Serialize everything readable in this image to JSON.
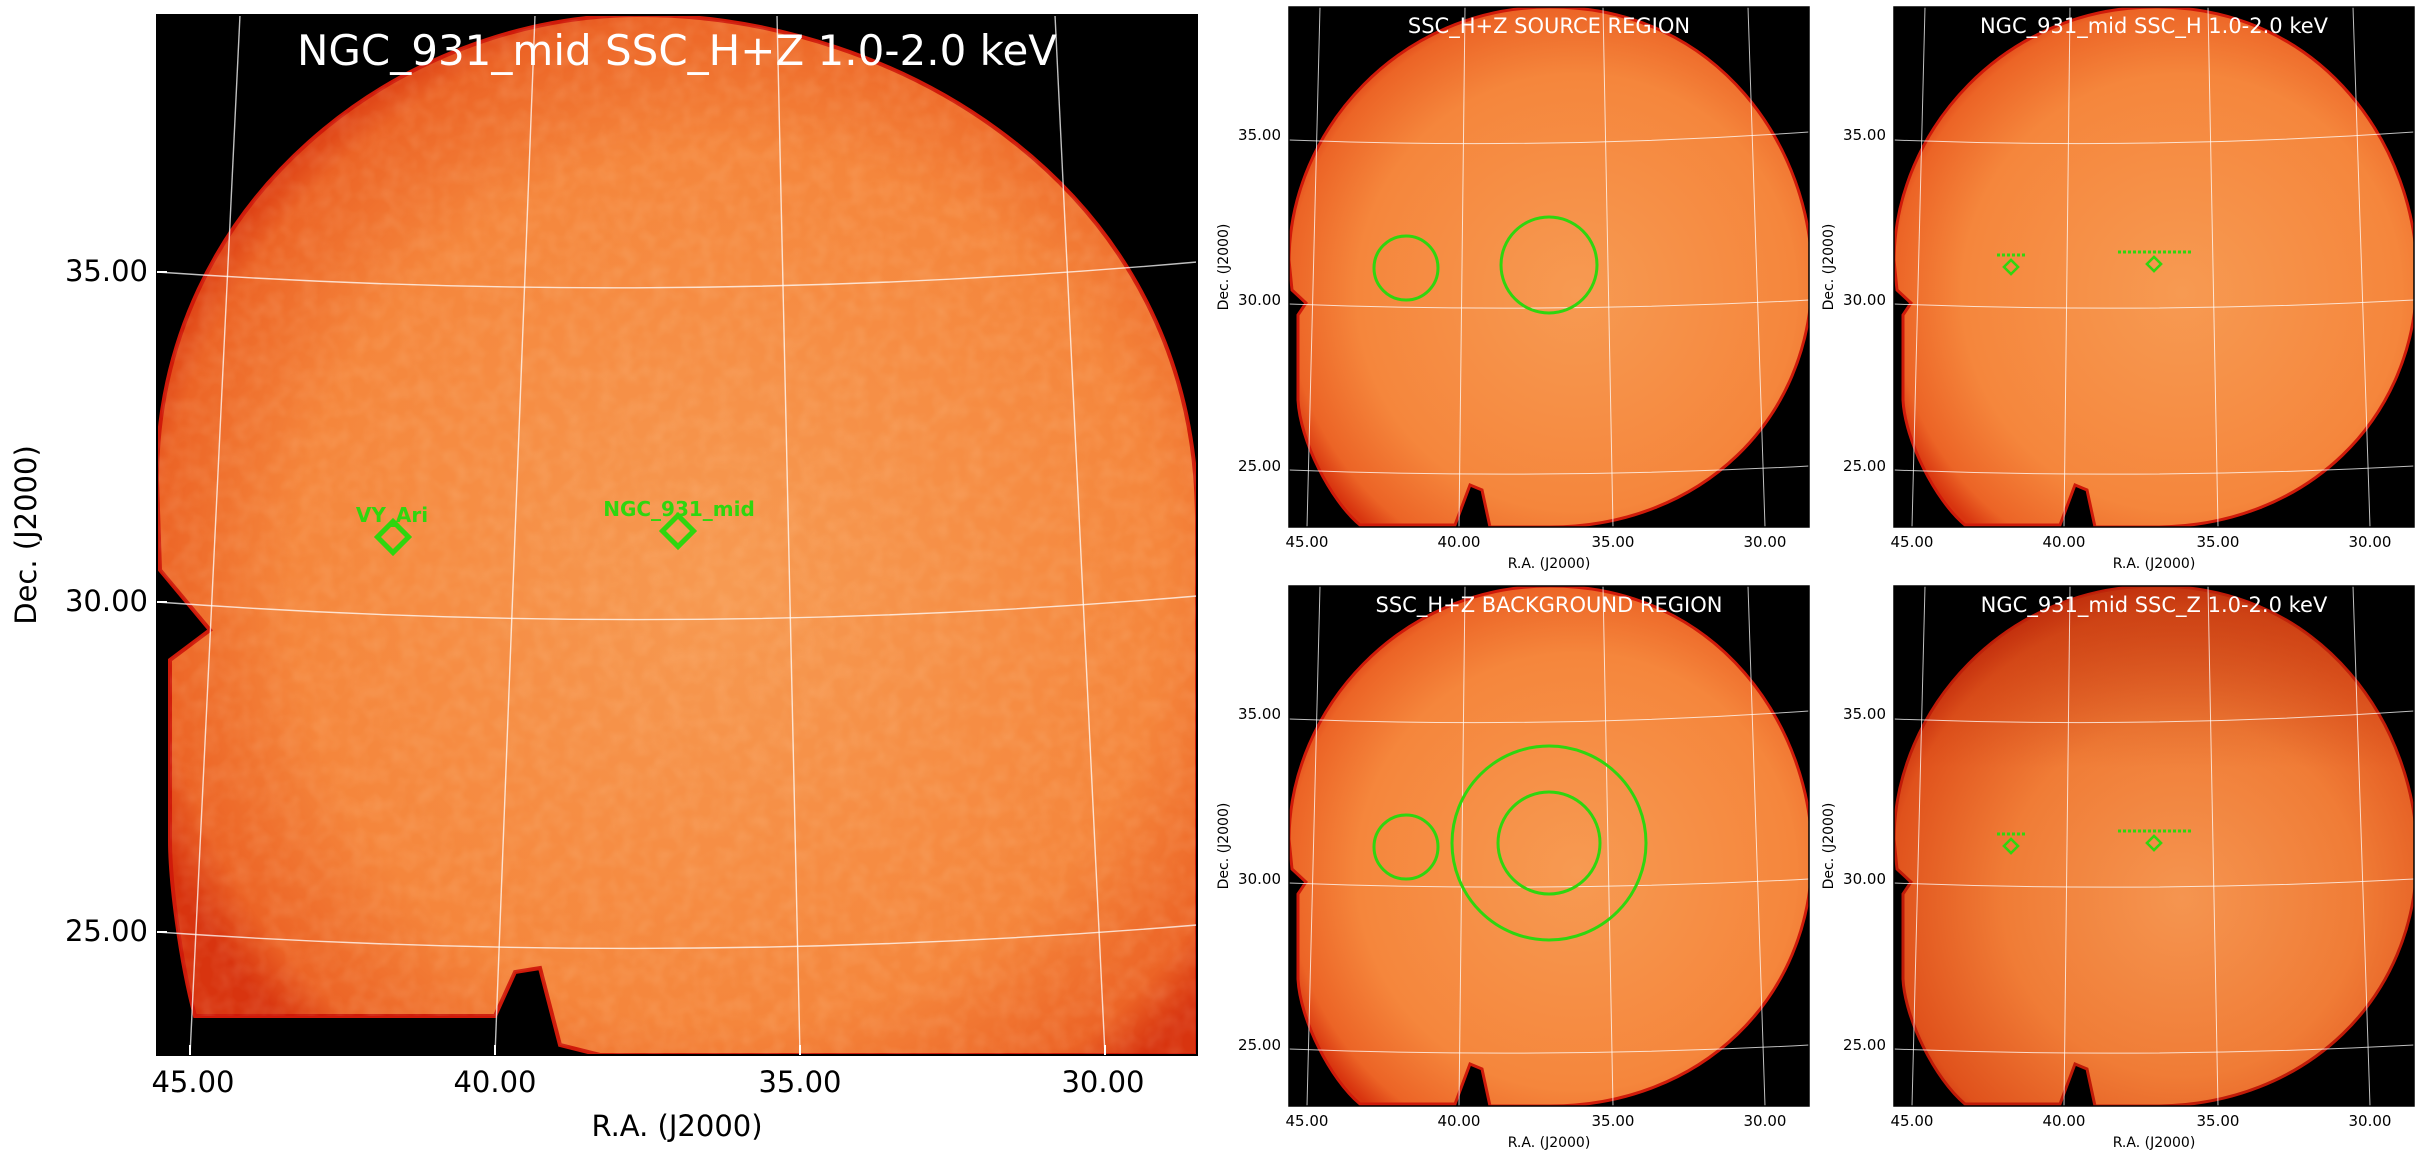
{
  "figure": {
    "main": {
      "title": "NGC_931_mid SSC_H+Z 1.0-2.0 keV",
      "xlabel": "R.A. (J2000)",
      "ylabel": "Dec. (J2000)",
      "x_ticks": [
        "45.00",
        "40.00",
        "35.00",
        "30.00"
      ],
      "y_ticks": [
        "35.00",
        "30.00",
        "25.00"
      ],
      "sources": [
        {
          "name": "VY_Ari"
        },
        {
          "name": "NGC_931_mid"
        }
      ]
    },
    "source_region": {
      "title": "SSC_H+Z SOURCE REGION",
      "xlabel": "R.A. (J2000)",
      "ylabel": "Dec. (J2000)",
      "x_ticks": [
        "45.00",
        "40.00",
        "35.00",
        "30.00"
      ],
      "y_ticks": [
        "35.00",
        "30.00",
        "25.00"
      ]
    },
    "background_region": {
      "title": "SSC_H+Z BACKGROUND REGION",
      "xlabel": "R.A. (J2000)",
      "ylabel": "Dec. (J2000)",
      "x_ticks": [
        "45.00",
        "40.00",
        "35.00",
        "30.00"
      ],
      "y_ticks": [
        "35.00",
        "30.00",
        "25.00"
      ]
    },
    "ssc_h": {
      "title": "NGC_931_mid SSC_H 1.0-2.0 keV",
      "xlabel": "R.A. (J2000)",
      "ylabel": "Dec. (J2000)",
      "x_ticks": [
        "45.00",
        "40.00",
        "35.00",
        "30.00"
      ],
      "y_ticks": [
        "35.00",
        "30.00",
        "25.00"
      ]
    },
    "ssc_z": {
      "title": "NGC_931_mid SSC_Z 1.0-2.0 keV",
      "xlabel": "R.A. (J2000)",
      "ylabel": "Dec. (J2000)",
      "x_ticks": [
        "45.00",
        "40.00",
        "35.00",
        "30.00"
      ],
      "y_ticks": [
        "35.00",
        "30.00",
        "25.00"
      ]
    }
  },
  "colors": {
    "background": "#000000",
    "disk_center": "#f79a52",
    "disk_mid": "#f5853a",
    "disk_edge": "#e9541c",
    "rim": "#cf1a0a",
    "region": "#2fd60f",
    "grid": "#ffffff"
  }
}
